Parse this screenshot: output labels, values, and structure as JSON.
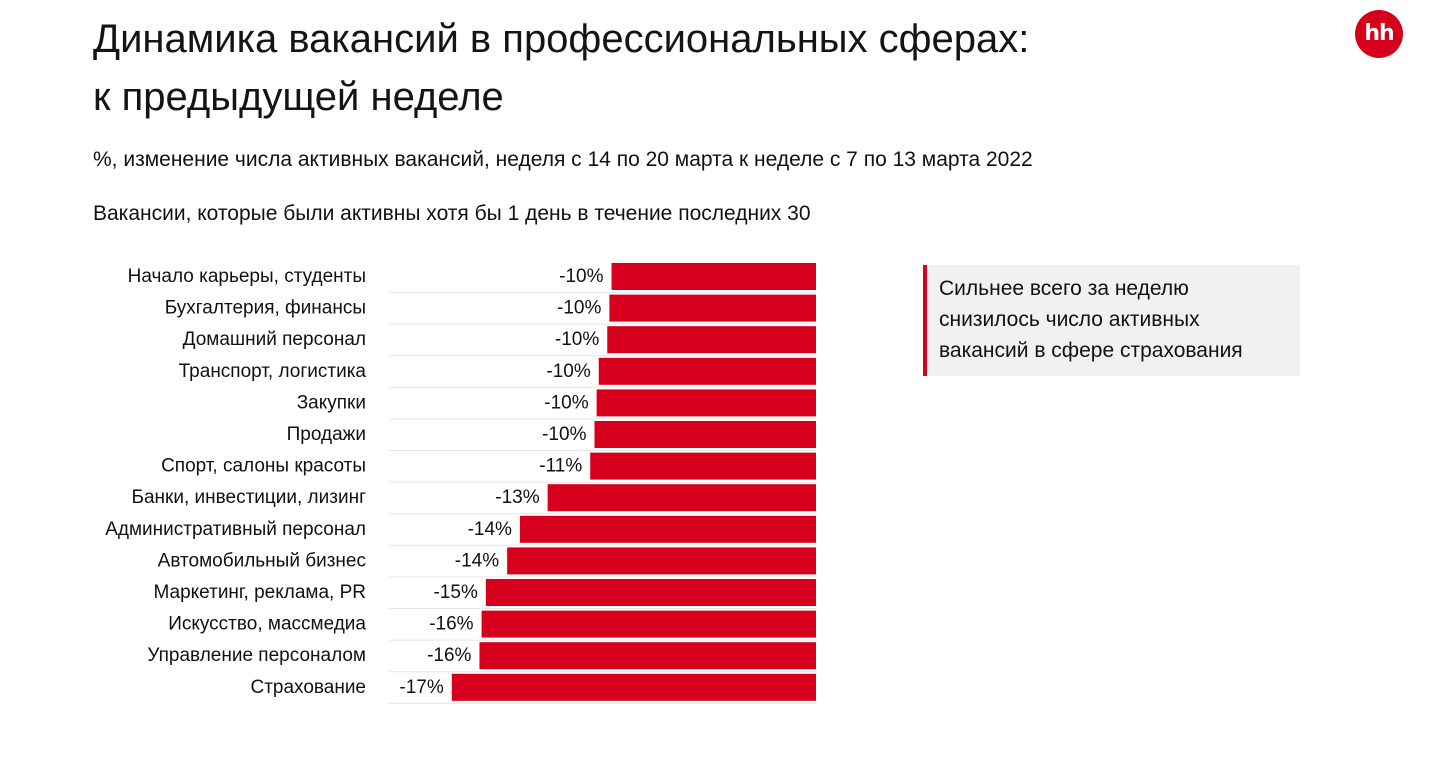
{
  "header": {
    "title_line1": "Динамика вакансий в профессиональных сферах:",
    "title_line2": "к предыдущей неделе",
    "subtitle": "%, изменение числа активных вакансий, неделя с 14 по 20 марта к неделе с 7 по 13 марта 2022",
    "note": "Вакансии, которые были активны хотя бы 1 день в течение последних 30",
    "logo_text": "hh"
  },
  "callout": {
    "text": "Сильнее всего за неделю снизилось число активных вакансий в сфере страхования"
  },
  "colors": {
    "accent": "#d6001c",
    "callout_bg": "#f1f1f1",
    "grid": "#e6e6e6"
  },
  "chart_data": {
    "type": "bar",
    "orientation": "horizontal",
    "title": "Динамика вакансий в профессиональных сферах: к предыдущей неделе",
    "subtitle": "%, изменение числа активных вакансий, неделя с 14 по 20 марта к неделе с 7 по 13 марта 2022",
    "xlabel": "",
    "ylabel": "",
    "xlim": [
      -18,
      0
    ],
    "grid": false,
    "legend": "none",
    "categories": [
      "Начало карьеры, студенты",
      "Бухгалтерия, финансы",
      "Домашний персонал",
      "Транспорт, логистика",
      "Закупки",
      "Продажи",
      "Спорт, салоны красоты",
      "Банки, инвестиции, лизинг",
      "Административный персонал",
      "Автомобильный бизнес",
      "Маркетинг, реклама, PR",
      "Искусство, массмедиа",
      "Управление персоналом",
      "Страхование"
    ],
    "values": [
      -9.6,
      -9.7,
      -9.8,
      -10.2,
      -10.3,
      -10.4,
      -10.6,
      -12.6,
      -13.9,
      -14.5,
      -15.5,
      -15.7,
      -15.8,
      -17.1
    ],
    "labels": [
      "-10%",
      "-10%",
      "-10%",
      "-10%",
      "-10%",
      "-10%",
      "-11%",
      "-13%",
      "-14%",
      "-14%",
      "-15%",
      "-16%",
      "-16%",
      "-17%"
    ]
  }
}
